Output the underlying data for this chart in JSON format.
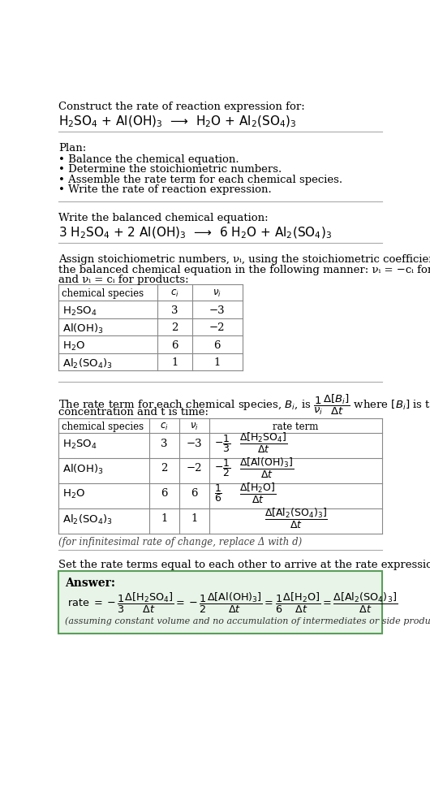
{
  "bg_color": "#ffffff",
  "text_color": "#000000",
  "section1_title": "Construct the rate of reaction expression for:",
  "plan_header": "Plan:",
  "plan_items": [
    "• Balance the chemical equation.",
    "• Determine the stoichiometric numbers.",
    "• Assemble the rate term for each chemical species.",
    "• Write the rate of reaction expression."
  ],
  "balanced_header": "Write the balanced chemical equation:",
  "stoich_line1": "Assign stoichiometric numbers, νᵢ, using the stoichiometric coefficients, cᵢ, from",
  "stoich_line2": "the balanced chemical equation in the following manner: νᵢ = −cᵢ for reactants",
  "stoich_line3": "and νᵢ = cᵢ for products:",
  "table1_rows": [
    [
      "H₂SO₄",
      "3",
      "−3"
    ],
    [
      "Al(OH)₃",
      "2",
      "−2"
    ],
    [
      "H₂O",
      "6",
      "6"
    ],
    [
      "Al₂(SO₄)₃",
      "1",
      "1"
    ]
  ],
  "rate_line1": "The rate term for each chemical species, Bᵢ, is",
  "rate_line2": "concentration and t is time:",
  "table2_rows": [
    [
      "H₂SO₄",
      "3",
      "−3"
    ],
    [
      "Al(OH)₃",
      "2",
      "−2"
    ],
    [
      "H₂O",
      "6",
      "6"
    ],
    [
      "Al₂(SO₄)₃",
      "1",
      "1"
    ]
  ],
  "infinitesimal_note": "(for infinitesimal rate of change, replace Δ with d)",
  "final_header": "Set the rate terms equal to each other to arrive at the rate expression:",
  "answer_bg": "#e8f4e8",
  "answer_border": "#5a9e5a",
  "divider_color": "#888888",
  "table_line_color": "#888888"
}
